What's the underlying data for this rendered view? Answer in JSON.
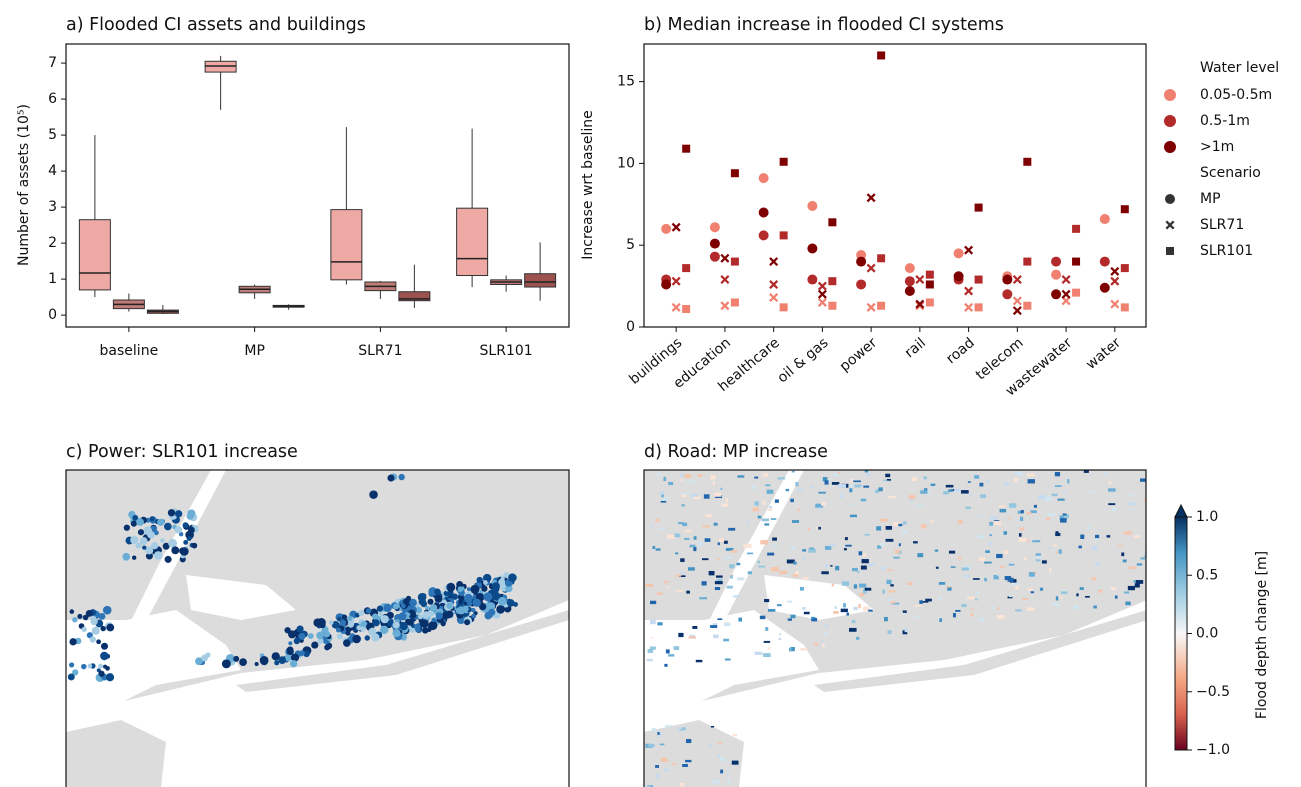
{
  "chart_data": [
    {
      "type": "box",
      "title": "a) Flooded CI assets and buildings",
      "y_label": "Number of assets (10⁵)",
      "categories": [
        "baseline",
        "MP",
        "SLR71",
        "SLR101"
      ],
      "ylim": [
        -0.33,
        7.53
      ],
      "yticks": [
        0,
        1,
        2,
        3,
        4,
        5,
        6,
        7
      ],
      "series": [
        {
          "color": "#eea9a4",
          "whislo": [
            0.5,
            5.7,
            0.85,
            0.78
          ],
          "q1": [
            0.7,
            6.75,
            0.98,
            1.1
          ],
          "median": [
            1.17,
            6.92,
            1.48,
            1.57
          ],
          "q3": [
            2.65,
            7.05,
            2.93,
            2.97
          ],
          "whishi": [
            5.0,
            7.2,
            5.22,
            5.18
          ]
        },
        {
          "color": "#bf7b77",
          "whislo": [
            0.1,
            0.45,
            0.45,
            0.65
          ],
          "q1": [
            0.18,
            0.62,
            0.68,
            0.85
          ],
          "median": [
            0.3,
            0.72,
            0.8,
            0.92
          ],
          "q3": [
            0.42,
            0.8,
            0.92,
            0.98
          ],
          "whishi": [
            0.6,
            0.85,
            0.95,
            1.1
          ]
        },
        {
          "color": "#9c524f",
          "whislo": [
            0.03,
            0.15,
            0.2,
            0.4
          ],
          "q1": [
            0.05,
            0.22,
            0.4,
            0.78
          ],
          "median": [
            0.1,
            0.25,
            0.45,
            0.92
          ],
          "q3": [
            0.14,
            0.27,
            0.65,
            1.15
          ],
          "whishi": [
            0.28,
            0.3,
            1.4,
            2.02
          ]
        }
      ]
    },
    {
      "type": "scatter",
      "title": "b) Median increase in flooded CI systems",
      "y_label": "Increase wrt baseline",
      "categories": [
        "buildings",
        "education",
        "healthcare",
        "oil & gas",
        "power",
        "rail",
        "road",
        "telecom",
        "wastewater",
        "water"
      ],
      "ylim": [
        0,
        17.3
      ],
      "yticks": [
        0,
        5,
        10,
        15
      ],
      "level_title": "Water level",
      "levels": [
        {
          "name": "0.05-0.5m",
          "color": "#f08070"
        },
        {
          "name": "0.5-1m",
          "color": "#b22a2a"
        },
        {
          "name": ">1m",
          "color": "#7f0000"
        }
      ],
      "scenario_title": "Scenario",
      "scenarios": [
        {
          "name": "MP",
          "marker": "circle",
          "values": [
            [
              6.0,
              6.1,
              9.1,
              7.4,
              4.4,
              3.6,
              4.5,
              3.1,
              3.2,
              6.6
            ],
            [
              2.9,
              4.3,
              5.6,
              2.9,
              2.6,
              2.8,
              2.9,
              2.0,
              4.0,
              4.0
            ],
            [
              2.6,
              5.1,
              7.0,
              4.8,
              4.0,
              2.2,
              3.1,
              2.9,
              2.0,
              2.4
            ]
          ]
        },
        {
          "name": "SLR71",
          "marker": "x",
          "values": [
            [
              1.2,
              1.3,
              1.8,
              1.5,
              1.2,
              1.3,
              1.2,
              1.6,
              1.6,
              1.4
            ],
            [
              2.8,
              2.9,
              2.6,
              2.5,
              3.6,
              2.9,
              2.2,
              2.9,
              2.9,
              2.8
            ],
            [
              6.1,
              4.2,
              4.0,
              2.0,
              7.9,
              1.4,
              4.7,
              1.0,
              2.0,
              3.4
            ]
          ]
        },
        {
          "name": "SLR101",
          "marker": "square",
          "values": [
            [
              1.1,
              1.5,
              1.2,
              1.3,
              1.3,
              1.5,
              1.2,
              1.3,
              2.1,
              1.2
            ],
            [
              3.6,
              4.0,
              5.6,
              2.8,
              4.2,
              3.2,
              2.9,
              4.0,
              6.0,
              3.6
            ],
            [
              10.9,
              9.4,
              10.1,
              6.4,
              16.6,
              2.6,
              7.3,
              10.1,
              4.0,
              7.2
            ]
          ]
        }
      ]
    },
    {
      "type": "map",
      "title": "c) Power: SLR101 increase"
    },
    {
      "type": "map",
      "title": "d) Road: MP increase",
      "colorbar_label": "Flood depth change [m]",
      "clim": [
        -1,
        1
      ],
      "cticks": [
        {
          "value": -1,
          "label": "−1.0"
        },
        {
          "value": -0.5,
          "label": "−0.5"
        },
        {
          "value": 0,
          "label": "0.0"
        },
        {
          "value": 0.5,
          "label": "0.5"
        },
        {
          "value": 1,
          "label": "1.0"
        }
      ]
    }
  ]
}
